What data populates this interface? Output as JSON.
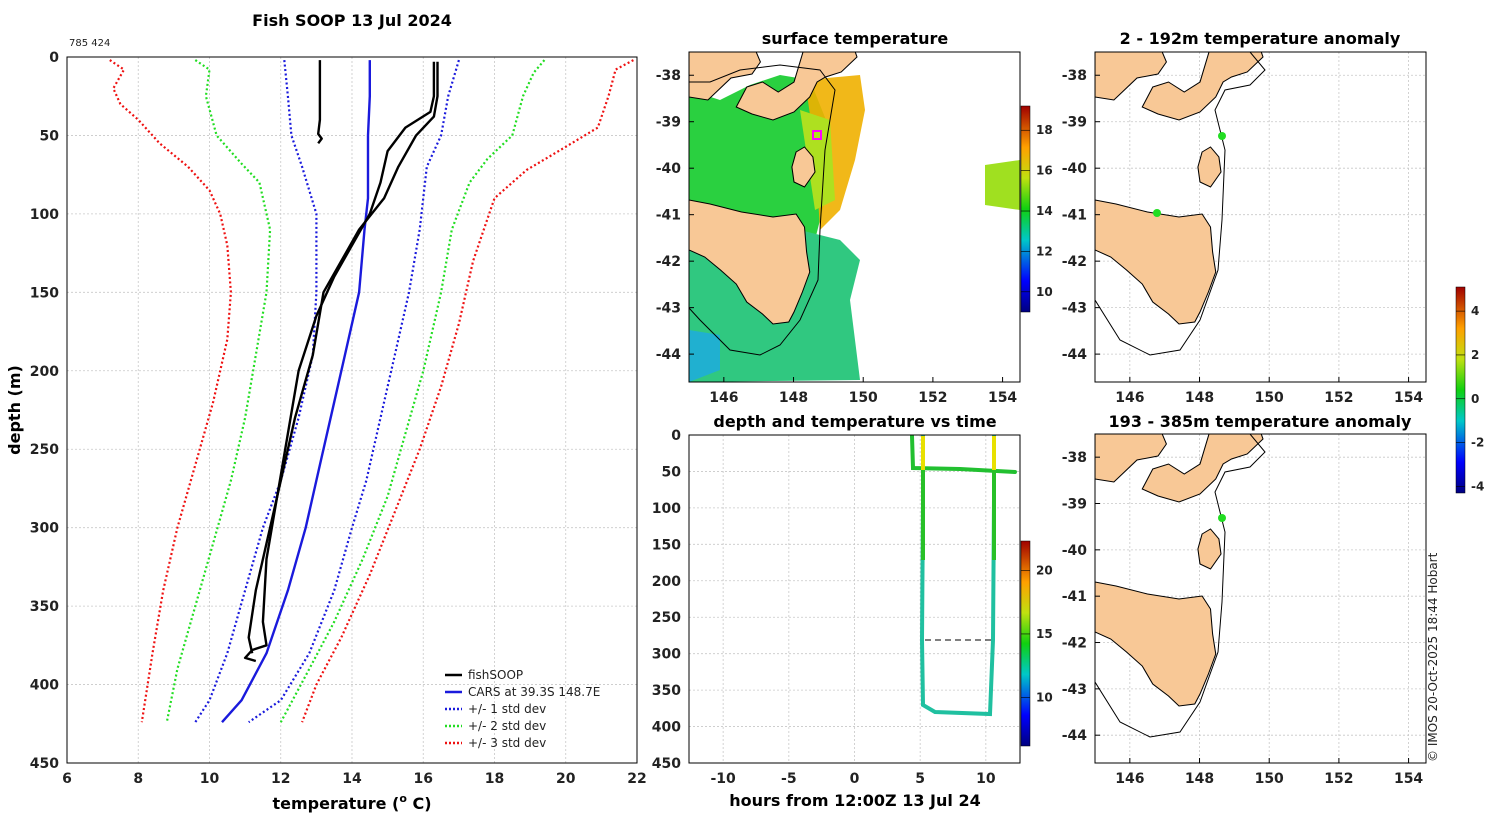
{
  "main_title": "Fish SOOP 13 Jul 2024",
  "id_label": "785 424",
  "credit": "© IMOS 20-Oct-2025 18:44 Hobart",
  "chart_data": [
    {
      "type": "line",
      "title": "Fish SOOP 13 Jul 2024",
      "xlabel": "temperature (o C)",
      "xlabel_main": "temperature (",
      "xlabel_sup": "o",
      "xlabel_tail": " C)",
      "ylabel": "depth (m)",
      "xlim": [
        6,
        22
      ],
      "ylim": [
        450,
        0
      ],
      "xticks": [
        "6",
        "8",
        "10",
        "12",
        "14",
        "16",
        "18",
        "20",
        "22"
      ],
      "yticks": [
        "0",
        "50",
        "100",
        "150",
        "200",
        "250",
        "300",
        "350",
        "400",
        "450"
      ],
      "legend": [
        "fishSOOP",
        "CARS at 39.3S 148.7E",
        "+/- 1 std dev",
        "+/- 2 std dev",
        "+/- 3 std dev"
      ],
      "series": [
        {
          "name": "CARS at 39.3S 148.7E",
          "color": "#1a1adc",
          "style": "solid",
          "points": [
            [
              14.5,
              2
            ],
            [
              14.5,
              25
            ],
            [
              14.45,
              50
            ],
            [
              14.45,
              90
            ],
            [
              14.35,
              110
            ],
            [
              14.2,
              150
            ],
            [
              13.8,
              190
            ],
            [
              13.5,
              220
            ],
            [
              13.1,
              260
            ],
            [
              12.7,
              300
            ],
            [
              12.2,
              340
            ],
            [
              11.6,
              380
            ],
            [
              10.9,
              410
            ],
            [
              10.35,
              424
            ]
          ]
        },
        {
          "name": "+1 std",
          "color": "#1a1adc",
          "style": "dot",
          "points": [
            [
              17.0,
              2
            ],
            [
              16.7,
              25
            ],
            [
              16.5,
              50
            ],
            [
              16.1,
              70
            ],
            [
              15.9,
              110
            ],
            [
              15.6,
              150
            ],
            [
              15.2,
              190
            ],
            [
              14.8,
              230
            ],
            [
              14.4,
              270
            ],
            [
              14.0,
              300
            ],
            [
              13.5,
              340
            ],
            [
              12.8,
              380
            ],
            [
              12.0,
              410
            ],
            [
              11.1,
              424
            ]
          ]
        },
        {
          "name": "-1 std",
          "color": "#1a1adc",
          "style": "dot",
          "points": [
            [
              12.1,
              2
            ],
            [
              12.2,
              25
            ],
            [
              12.3,
              50
            ],
            [
              12.6,
              70
            ],
            [
              13.0,
              100
            ],
            [
              13.0,
              150
            ],
            [
              12.9,
              190
            ],
            [
              12.5,
              230
            ],
            [
              12.0,
              270
            ],
            [
              11.5,
              300
            ],
            [
              11.0,
              340
            ],
            [
              10.5,
              380
            ],
            [
              10.0,
              410
            ],
            [
              9.6,
              424
            ]
          ]
        },
        {
          "name": "+2 std",
          "color": "#22dd22",
          "style": "dot",
          "points": [
            [
              19.4,
              2
            ],
            [
              19.1,
              10
            ],
            [
              18.8,
              25
            ],
            [
              18.5,
              50
            ],
            [
              17.8,
              65
            ],
            [
              17.3,
              80
            ],
            [
              16.8,
              110
            ],
            [
              16.5,
              150
            ],
            [
              16.0,
              200
            ],
            [
              15.5,
              240
            ],
            [
              15.0,
              280
            ],
            [
              14.3,
              320
            ],
            [
              13.5,
              360
            ],
            [
              12.8,
              390
            ],
            [
              12.0,
              424
            ]
          ]
        },
        {
          "name": "-2 std",
          "color": "#22dd22",
          "style": "dot",
          "points": [
            [
              9.6,
              2
            ],
            [
              10.0,
              8
            ],
            [
              9.9,
              25
            ],
            [
              10.2,
              50
            ],
            [
              10.9,
              68
            ],
            [
              11.4,
              80
            ],
            [
              11.7,
              110
            ],
            [
              11.6,
              150
            ],
            [
              11.3,
              190
            ],
            [
              11.0,
              230
            ],
            [
              10.6,
              270
            ],
            [
              10.1,
              310
            ],
            [
              9.6,
              350
            ],
            [
              9.1,
              390
            ],
            [
              8.8,
              424
            ]
          ]
        },
        {
          "name": "+3 std",
          "color": "#ee1111",
          "style": "dot",
          "points": [
            [
              21.9,
              2
            ],
            [
              21.4,
              8
            ],
            [
              21.2,
              25
            ],
            [
              20.9,
              45
            ],
            [
              19.8,
              60
            ],
            [
              18.9,
              72
            ],
            [
              18.0,
              90
            ],
            [
              17.4,
              130
            ],
            [
              17.0,
              170
            ],
            [
              16.5,
              210
            ],
            [
              15.9,
              250
            ],
            [
              15.2,
              290
            ],
            [
              14.5,
              330
            ],
            [
              13.7,
              370
            ],
            [
              13.0,
              400
            ],
            [
              12.6,
              424
            ]
          ]
        },
        {
          "name": "-3 std",
          "color": "#ee1111",
          "style": "dot",
          "points": [
            [
              7.2,
              2
            ],
            [
              7.6,
              8
            ],
            [
              7.3,
              20
            ],
            [
              7.5,
              30
            ],
            [
              8.0,
              40
            ],
            [
              8.6,
              55
            ],
            [
              9.4,
              70
            ],
            [
              10.0,
              85
            ],
            [
              10.3,
              100
            ],
            [
              10.5,
              120
            ],
            [
              10.6,
              150
            ],
            [
              10.5,
              180
            ],
            [
              10.1,
              220
            ],
            [
              9.6,
              260
            ],
            [
              9.1,
              300
            ],
            [
              8.7,
              340
            ],
            [
              8.4,
              380
            ],
            [
              8.1,
              424
            ]
          ]
        },
        {
          "name": "fishSOOP",
          "color": "#000000",
          "style": "solid",
          "points": [
            [
              16.3,
              3
            ],
            [
              16.3,
              25
            ],
            [
              16.2,
              35
            ],
            [
              15.5,
              45
            ],
            [
              15.0,
              60
            ],
            [
              14.8,
              80
            ],
            [
              14.5,
              100
            ],
            [
              14.0,
              120
            ],
            [
              13.5,
              140
            ],
            [
              13.0,
              165
            ],
            [
              12.5,
              200
            ],
            [
              12.2,
              240
            ],
            [
              11.9,
              280
            ],
            [
              11.6,
              320
            ],
            [
              11.5,
              360
            ],
            [
              11.6,
              375
            ],
            [
              11.2,
              378
            ],
            [
              11.0,
              383
            ],
            [
              11.3,
              385
            ]
          ]
        },
        {
          "name": "fishSOOP-b",
          "color": "#000000",
          "style": "solid",
          "points": [
            [
              16.4,
              3
            ],
            [
              16.4,
              25
            ],
            [
              16.3,
              38
            ],
            [
              15.8,
              50
            ],
            [
              15.3,
              70
            ],
            [
              14.9,
              90
            ],
            [
              14.2,
              110
            ],
            [
              13.7,
              130
            ],
            [
              13.2,
              150
            ],
            [
              12.9,
              190
            ],
            [
              12.4,
              230
            ],
            [
              12.0,
              270
            ],
            [
              11.6,
              310
            ],
            [
              11.3,
              340
            ],
            [
              11.1,
              370
            ],
            [
              11.2,
              380
            ]
          ]
        },
        {
          "name": "fishSOOP-c",
          "color": "#000000",
          "style": "solid",
          "points": [
            [
              13.1,
              2
            ],
            [
              13.1,
              20
            ],
            [
              13.1,
              40
            ],
            [
              13.05,
              49
            ],
            [
              13.15,
              52
            ],
            [
              13.05,
              55
            ]
          ]
        }
      ]
    },
    {
      "type": "heatmap",
      "title": "surface temperature",
      "xticks": [
        "146",
        "148",
        "150",
        "152",
        "154"
      ],
      "yticks": [
        "-38",
        "-39",
        "-40",
        "-41",
        "-42",
        "-43",
        "-44"
      ],
      "colorbar_ticks": [
        "10",
        "12",
        "14",
        "16",
        "18"
      ],
      "xlim": [
        145,
        154.5
      ],
      "ylim": [
        -44.6,
        -37.5
      ]
    },
    {
      "type": "line",
      "title": "depth and temperature vs time",
      "xlabel": "hours from 12:00Z 13 Jul 24",
      "xticks": [
        "-10",
        "-5",
        "0",
        "5",
        "10"
      ],
      "yticks": [
        "0",
        "50",
        "100",
        "150",
        "200",
        "250",
        "300",
        "350",
        "400",
        "450"
      ],
      "xlim": [
        -12.6,
        12.6
      ],
      "ylim": [
        450,
        0
      ],
      "colorbar_ticks": [
        "10",
        "15",
        "20"
      ]
    },
    {
      "type": "heatmap",
      "title": "2 - 192m temperature anomaly",
      "xticks": [
        "146",
        "148",
        "150",
        "152",
        "154"
      ],
      "yticks": [
        "-38",
        "-39",
        "-40",
        "-41",
        "-42",
        "-43",
        "-44"
      ],
      "xlim": [
        145,
        154.5
      ],
      "ylim": [
        -44.6,
        -37.5
      ]
    },
    {
      "type": "heatmap",
      "title": "193 - 385m temperature anomaly",
      "xticks": [
        "146",
        "148",
        "150",
        "152",
        "154"
      ],
      "yticks": [
        "-38",
        "-39",
        "-40",
        "-41",
        "-42",
        "-43",
        "-44"
      ],
      "xlim": [
        145,
        154.5
      ],
      "ylim": [
        -44.6,
        -37.5
      ],
      "colorbar_ticks": [
        "4",
        "2",
        "0",
        "-2",
        "-4"
      ]
    }
  ]
}
